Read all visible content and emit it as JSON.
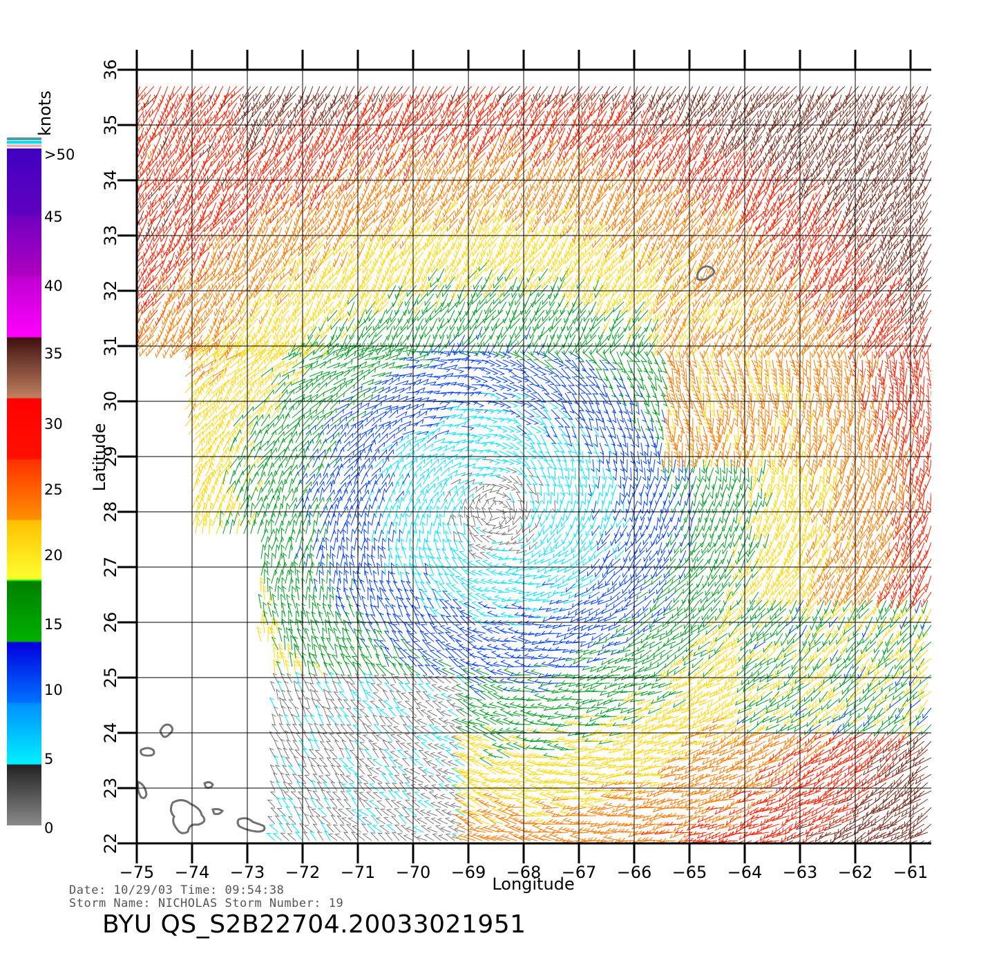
{
  "units": "knots",
  "colorbar": {
    "labels": [
      ">50",
      "45",
      "40",
      "35",
      "30",
      "25",
      "20",
      "15",
      "10",
      "5",
      "0"
    ],
    "colors": {
      "0-5": "#7a7a7a",
      "5-10": "#00e5ff",
      "10-15": "#0040ff",
      "15-20": "#00a020",
      "20-25": "#ffd700",
      "25-30": "#ff7a00",
      "30-35": "#ff2000",
      "35-40": "#7a3020",
      "40-45": "#ff00ff",
      "45-50": "#9000c0",
      ">50": "#5000c0"
    }
  },
  "axes": {
    "xlabel": "Longitude",
    "ylabel": "Latitude",
    "xticks": [
      "−75",
      "−74",
      "−73",
      "−72",
      "−71",
      "−70",
      "−69",
      "−68",
      "−67",
      "−66",
      "−65",
      "−64",
      "−63",
      "−62",
      "−61"
    ],
    "yticks": [
      "22",
      "23",
      "24",
      "25",
      "26",
      "27",
      "28",
      "29",
      "30",
      "31",
      "32",
      "33",
      "34",
      "35",
      "36"
    ],
    "lon_range": [
      -75,
      -60.6
    ],
    "lat_range": [
      22,
      36
    ]
  },
  "footer": {
    "date_label": "Date:",
    "date": "10/29/03",
    "time_label": "Time:",
    "time": "09:54:38",
    "storm_name_label": "Storm Name:",
    "storm_name": "NICHOLAS",
    "storm_number_label": "Storm Number:",
    "storm_number": "19",
    "product_id": "BYU QS_S2B22704.20033021951"
  }
}
